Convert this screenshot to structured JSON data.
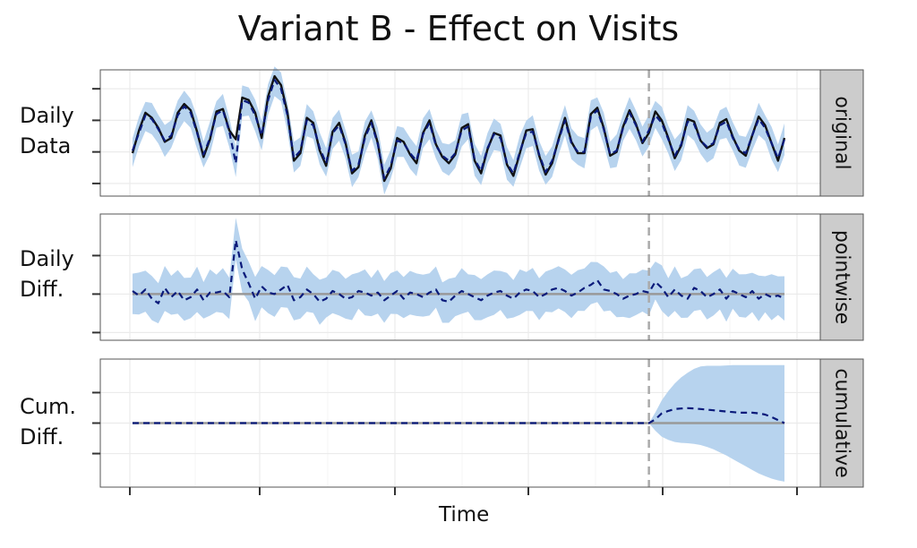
{
  "chart_data": {
    "type": "line",
    "title": "Variant B - Effect on Visits",
    "xlabel": "Time",
    "intervention_index": 80,
    "colors": {
      "band": "#b7d3ee",
      "observed": "#111111",
      "predicted": "#0a1a7a",
      "zero_line": "#999999",
      "strip": "#cccccc",
      "grid_major": "#ebebeb",
      "grid_minor": "#f5f5f5",
      "intervention_line": "#aaaaaa"
    },
    "panels": [
      {
        "id": "original",
        "strip_label": "original",
        "ylabel_lines": [
          "Daily",
          "Data"
        ],
        "ylim": [
          0,
          10
        ],
        "yticks": [
          1,
          3.5,
          6,
          8.5
        ],
        "series": [
          {
            "name": "observed",
            "style": "solid",
            "values": [
              3.4,
              5.2,
              6.6,
              6.2,
              5.4,
              4.3,
              4.6,
              6.6,
              7.3,
              6.8,
              5.1,
              3.1,
              4.5,
              6.7,
              6.9,
              5.2,
              4.5,
              7.8,
              7.6,
              6.6,
              4.6,
              7.9,
              9.5,
              8.8,
              6.6,
              2.8,
              3.4,
              6.2,
              5.8,
              3.6,
              2.4,
              5.1,
              5.8,
              4.2,
              1.8,
              2.3,
              4.8,
              6.0,
              4.2,
              1.2,
              2.2,
              4.6,
              4.3,
              3.3,
              2.6,
              5.0,
              6.0,
              4.1,
              3.1,
              2.6,
              3.3,
              5.4,
              5.7,
              2.8,
              1.8,
              3.7,
              5.0,
              4.8,
              2.5,
              1.6,
              3.4,
              5.2,
              5.3,
              3.2,
              1.7,
              2.6,
              4.5,
              6.2,
              4.3,
              3.4,
              3.4,
              6.5,
              7.0,
              5.4,
              3.2,
              3.5,
              5.5,
              6.8,
              5.7,
              4.2,
              5.0,
              6.7,
              6.0,
              4.6,
              3.0,
              4.0,
              6.1,
              5.9,
              4.4,
              3.8,
              4.1,
              5.8,
              6.1,
              4.7,
              3.6,
              3.2,
              4.8,
              6.3,
              5.6,
              4.2,
              2.8,
              4.6
            ]
          },
          {
            "name": "predicted",
            "style": "dashed",
            "values": [
              3.6,
              5.0,
              6.4,
              6.1,
              5.3,
              4.4,
              4.8,
              6.4,
              7.1,
              6.6,
              5.0,
              3.3,
              4.6,
              6.5,
              6.8,
              5.1,
              2.6,
              7.6,
              7.4,
              6.4,
              4.8,
              7.6,
              9.2,
              8.5,
              6.4,
              3.0,
              3.6,
              6.0,
              5.6,
              3.8,
              2.6,
              5.0,
              5.6,
              4.1,
              2.0,
              2.5,
              4.6,
              5.8,
              4.1,
              1.4,
              2.4,
              4.4,
              4.2,
              3.4,
              2.8,
              4.9,
              5.8,
              4.0,
              3.2,
              2.8,
              3.4,
              5.2,
              5.5,
              2.9,
              2.0,
              3.8,
              4.9,
              4.6,
              2.6,
              1.8,
              3.5,
              5.0,
              5.1,
              3.3,
              1.9,
              2.8,
              4.4,
              6.0,
              4.2,
              3.5,
              3.5,
              6.3,
              6.8,
              5.3,
              3.3,
              3.6,
              5.4,
              6.6,
              5.6,
              4.3,
              5.2,
              6.4,
              5.8,
              4.5,
              3.2,
              4.1,
              5.9,
              5.7,
              4.4,
              3.9,
              4.2,
              5.6,
              5.9,
              4.6,
              3.7,
              3.4,
              4.8,
              6.1,
              5.4,
              4.2,
              3.0,
              4.5
            ]
          }
        ],
        "band_halfwidth": 1.3
      },
      {
        "id": "pointwise",
        "strip_label": "pointwise",
        "ylabel_lines": [
          "Daily",
          "Diff."
        ],
        "ylim": [
          -3.0,
          5.2
        ],
        "yticks": [
          -2.5,
          0,
          2.5
        ],
        "reference_value": 0,
        "series": [
          {
            "name": "predicted",
            "style": "dashed",
            "values": [
              0.2,
              -0.1,
              0.3,
              -0.3,
              -0.6,
              0.4,
              -0.2,
              0.2,
              -0.4,
              -0.2,
              0.3,
              -0.4,
              0.1,
              0.1,
              0.2,
              -0.2,
              3.5,
              1.6,
              0.7,
              -0.3,
              0.5,
              0.1,
              0.0,
              0.3,
              0.6,
              -0.4,
              -0.2,
              0.3,
              0.0,
              -0.5,
              -0.3,
              0.2,
              0.0,
              -0.3,
              -0.2,
              0.2,
              0.1,
              -0.1,
              0.1,
              -0.4,
              -0.1,
              0.2,
              -0.3,
              0.1,
              0.0,
              -0.2,
              0.1,
              0.3,
              -0.4,
              -0.5,
              -0.1,
              0.2,
              0.0,
              -0.2,
              -0.4,
              -0.1,
              0.1,
              0.2,
              -0.1,
              -0.3,
              0.1,
              0.3,
              0.2,
              -0.2,
              0.0,
              0.3,
              0.4,
              0.2,
              -0.1,
              0.1,
              0.4,
              0.6,
              0.9,
              0.3,
              0.2,
              0.0,
              -0.3,
              -0.1,
              0.0,
              0.2,
              0.1,
              0.8,
              0.4,
              -0.2,
              0.3,
              -0.1,
              -0.3,
              0.4,
              0.2,
              -0.2,
              0.0,
              0.3,
              -0.3,
              0.2,
              0.0,
              -0.2,
              0.2,
              -0.3,
              0.0,
              -0.2,
              -0.1,
              -0.3
            ]
          }
        ],
        "band_halfwidth": 1.5
      },
      {
        "id": "cumulative",
        "strip_label": "cumulative",
        "ylabel_lines": [
          "Cum.",
          "Diff."
        ],
        "ylim": [
          -2.1,
          2.1
        ],
        "yticks": [
          -1,
          0,
          1
        ],
        "reference_value": 0,
        "series": [
          {
            "name": "predicted",
            "style": "dashed",
            "values": [
              0,
              0,
              0,
              0,
              0,
              0,
              0,
              0,
              0,
              0,
              0,
              0,
              0,
              0,
              0,
              0,
              0,
              0,
              0,
              0,
              0,
              0,
              0,
              0,
              0,
              0,
              0,
              0,
              0,
              0,
              0,
              0,
              0,
              0,
              0,
              0,
              0,
              0,
              0,
              0,
              0,
              0,
              0,
              0,
              0,
              0,
              0,
              0,
              0,
              0,
              0,
              0,
              0,
              0,
              0,
              0,
              0,
              0,
              0,
              0,
              0,
              0,
              0,
              0,
              0,
              0,
              0,
              0,
              0,
              0,
              0,
              0,
              0,
              0,
              0,
              0,
              0,
              0,
              0,
              0,
              0,
              0.12,
              0.32,
              0.4,
              0.46,
              0.48,
              0.49,
              0.48,
              0.46,
              0.44,
              0.42,
              0.4,
              0.38,
              0.36,
              0.34,
              0.34,
              0.34,
              0.32,
              0.28,
              0.2,
              0.1,
              0
            ]
          }
        ],
        "band_upper": [
          0,
          0.35,
          0.75,
          1.05,
          1.3,
          1.5,
          1.65,
          1.78,
          1.86,
          1.88,
          1.88,
          1.88,
          1.89,
          1.9,
          1.9,
          1.9,
          1.9,
          1.9,
          1.9,
          1.9,
          1.9,
          1.9
        ],
        "band_lower": [
          0,
          -0.25,
          -0.45,
          -0.55,
          -0.62,
          -0.65,
          -0.66,
          -0.68,
          -0.72,
          -0.78,
          -0.86,
          -0.96,
          -1.06,
          -1.18,
          -1.3,
          -1.42,
          -1.54,
          -1.65,
          -1.74,
          -1.82,
          -1.88,
          -1.92
        ]
      }
    ]
  }
}
